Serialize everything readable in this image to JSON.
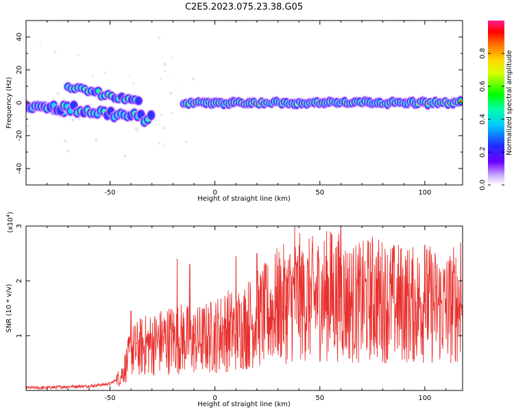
{
  "title": "C2E5.2023.075.23.38.G05",
  "chart_data": [
    {
      "type": "heatmap",
      "xlabel": "Height of straight line (km)",
      "ylabel": "Frequency (Hz)",
      "xlim": [
        -90,
        118
      ],
      "ylim": [
        -50,
        50
      ],
      "xticks": [
        -50,
        0,
        50,
        100
      ],
      "yticks": [
        -40,
        -20,
        0,
        20,
        40
      ],
      "colorbar": {
        "label": "Normalized spectral amplitude",
        "range": [
          0,
          1
        ],
        "ticks": [
          "0.0",
          "0.2",
          "0.4",
          "0.6",
          "0.8"
        ],
        "ticks_values": [
          0,
          0.2,
          0.4,
          0.6,
          0.8
        ],
        "colormap": "rainbow-white"
      },
      "features": [
        {
          "segment": "stable_line",
          "x": [
            -15,
            118
          ],
          "frequency_hz": 0,
          "amplitude": "high"
        },
        {
          "segment": "upper_branch",
          "x": [
            -70,
            -35
          ],
          "frequency_hz": [
            10,
            0
          ],
          "amplitude": "medium"
        },
        {
          "segment": "lower_branch",
          "x": [
            -90,
            -30
          ],
          "frequency_hz": [
            0,
            -10
          ],
          "amplitude": "medium"
        },
        {
          "segment": "early_band",
          "x": [
            -90,
            -65
          ],
          "frequency_hz": [
            -2,
            -5
          ],
          "amplitude": "medium"
        }
      ]
    },
    {
      "type": "line",
      "xlabel": "Height of straight line (km)",
      "ylabel": "SNR (10 * v/v)",
      "y_scale_label": "(x10",
      "y_scale_exp": "4",
      "y_scale_close": ")",
      "xlim": [
        -90,
        118
      ],
      "ylim": [
        0,
        3
      ],
      "xticks": [
        -50,
        0,
        50,
        100
      ],
      "yticks": [
        1,
        2,
        3
      ],
      "series": [
        {
          "color": "#e8312e",
          "x": [
            -90,
            -80,
            -70,
            -60,
            -50,
            -45,
            -42,
            -40,
            -35,
            -30,
            -25,
            -20,
            -15,
            -10,
            -5,
            0,
            5,
            10,
            15,
            20,
            25,
            30,
            35,
            40,
            45,
            50,
            55,
            60,
            65,
            70,
            75,
            80,
            85,
            90,
            95,
            100,
            105,
            110,
            115,
            118
          ],
          "values": [
            0.05,
            0.05,
            0.07,
            0.08,
            0.12,
            0.25,
            0.5,
            0.7,
            0.8,
            0.85,
            0.9,
            0.95,
            0.95,
            0.9,
            0.95,
            1.0,
            1.1,
            1.1,
            1.2,
            1.3,
            1.4,
            1.55,
            1.6,
            1.7,
            1.65,
            1.7,
            1.75,
            1.7,
            1.6,
            1.6,
            1.7,
            1.65,
            1.6,
            1.6,
            1.55,
            1.6,
            1.55,
            1.5,
            1.6,
            1.55
          ],
          "peak_x": [
            -40,
            -18,
            -12,
            10,
            20,
            38,
            42,
            55,
            60,
            85,
            100,
            117
          ],
          "peak_values": [
            1.45,
            2.4,
            2.3,
            2.45,
            2.5,
            3.0,
            2.5,
            2.9,
            2.95,
            2.6,
            2.65,
            2.7
          ]
        }
      ]
    }
  ]
}
